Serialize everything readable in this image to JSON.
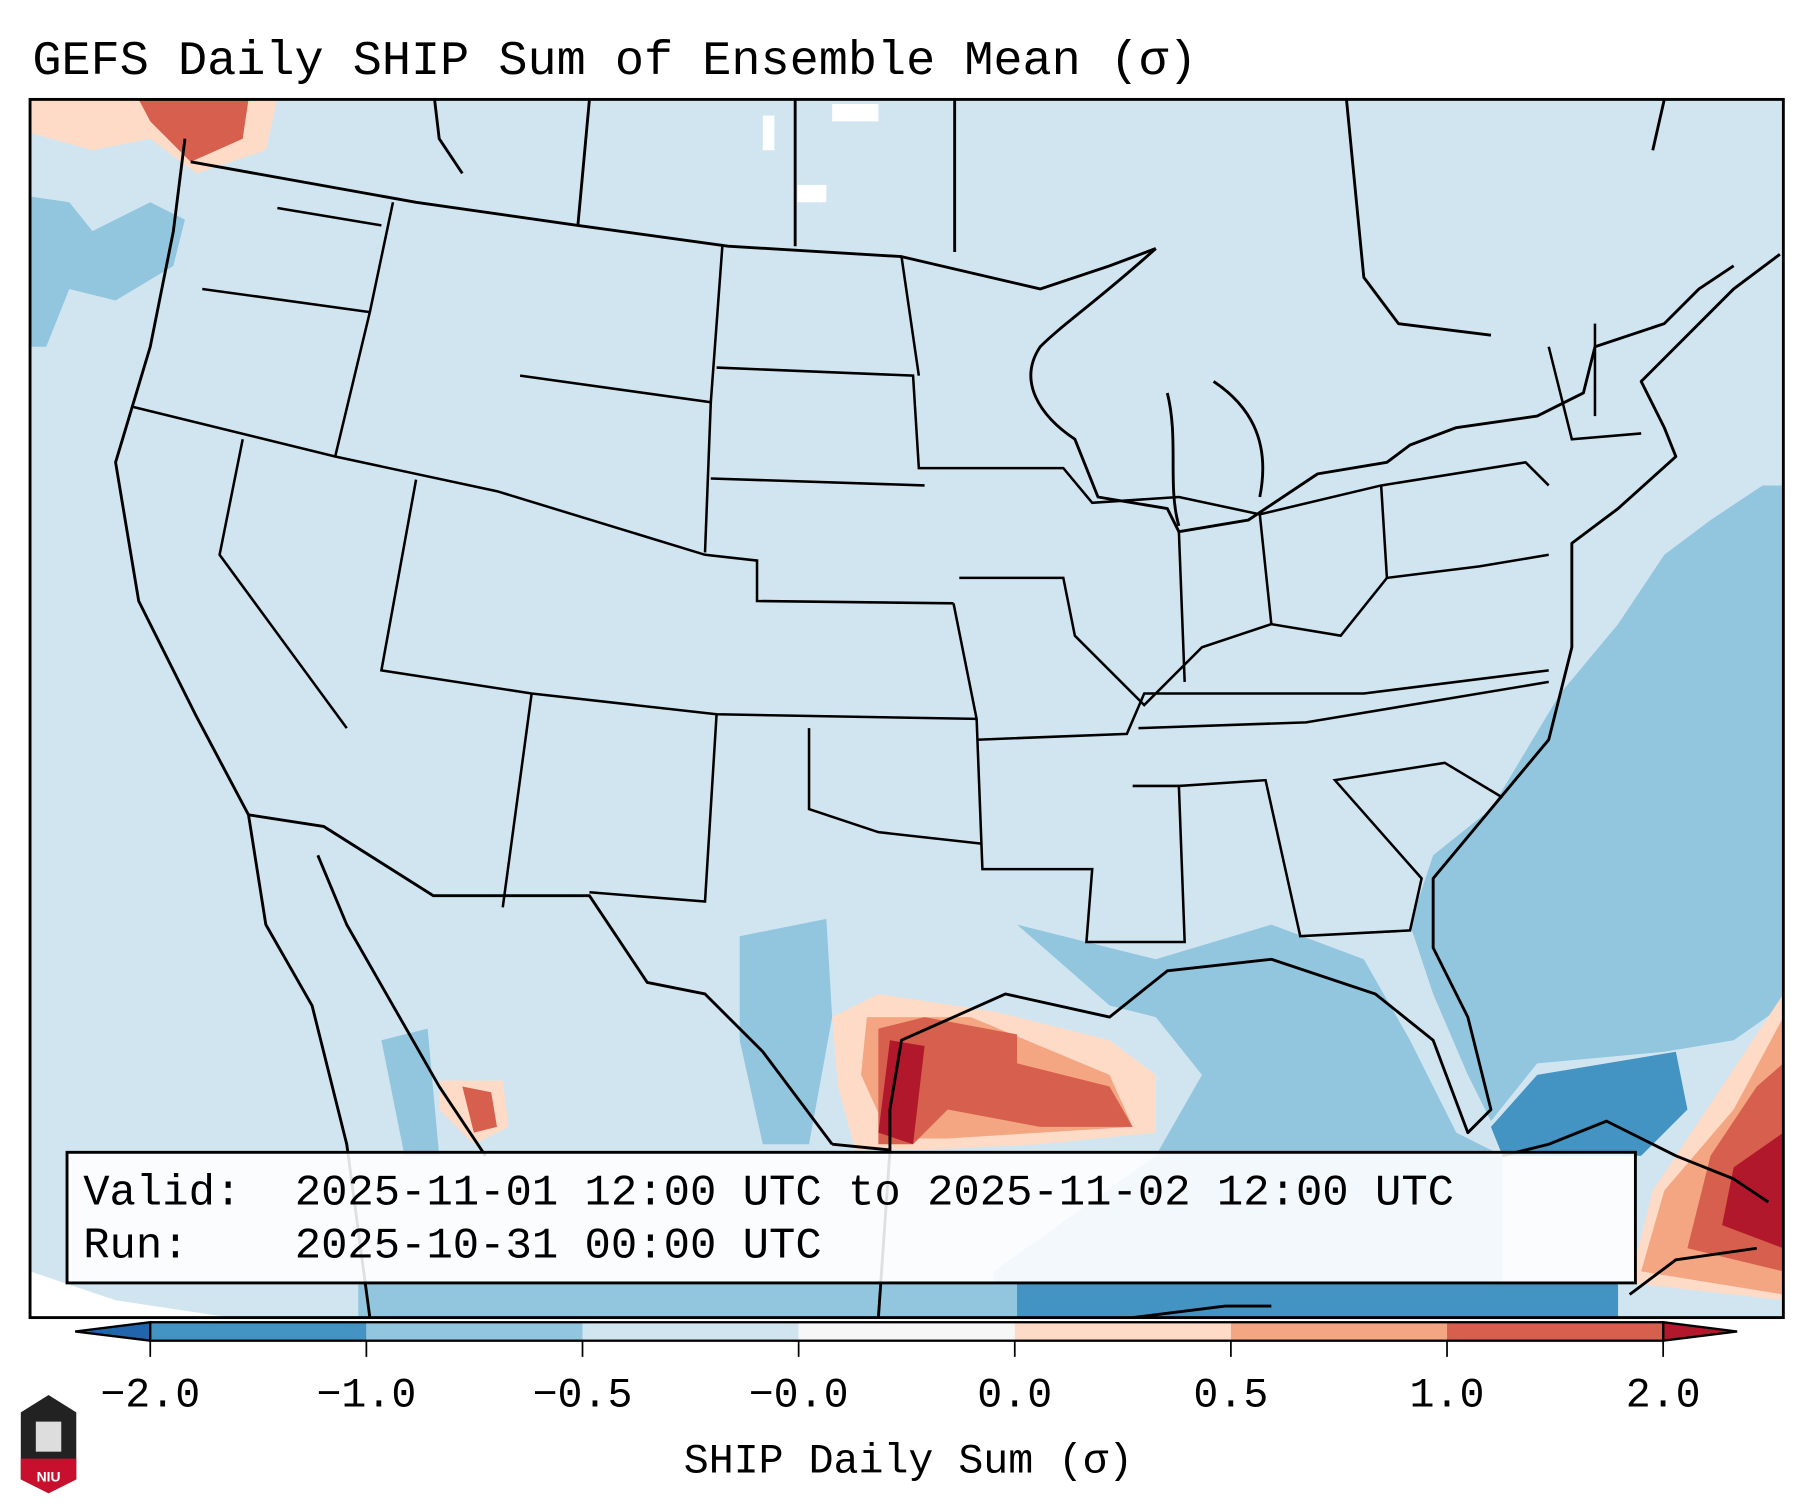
{
  "title": "GEFS Daily SHIP Sum of Ensemble Mean (σ)",
  "info_box": {
    "valid_label": "Valid:",
    "valid_value": "2025-11-01 12:00 UTC to 2025-11-02 12:00 UTC",
    "run_label": "Run:",
    "run_value": "2025-10-31 00:00 UTC"
  },
  "colorbar": {
    "label": "SHIP Daily Sum (σ)",
    "ticks": [
      "−2.0",
      "−1.0",
      "−0.5",
      "−0.0",
      "0.0",
      "0.5",
      "1.0",
      "2.0"
    ],
    "colors": [
      "#4393c3",
      "#92c5de",
      "#d1e5f0",
      "#f7f7f7",
      "#fddbc7",
      "#f4a582",
      "#d6604d"
    ],
    "under_color": "#2166ac",
    "over_color": "#b2182b"
  },
  "logo": {
    "text": "NIU"
  }
}
